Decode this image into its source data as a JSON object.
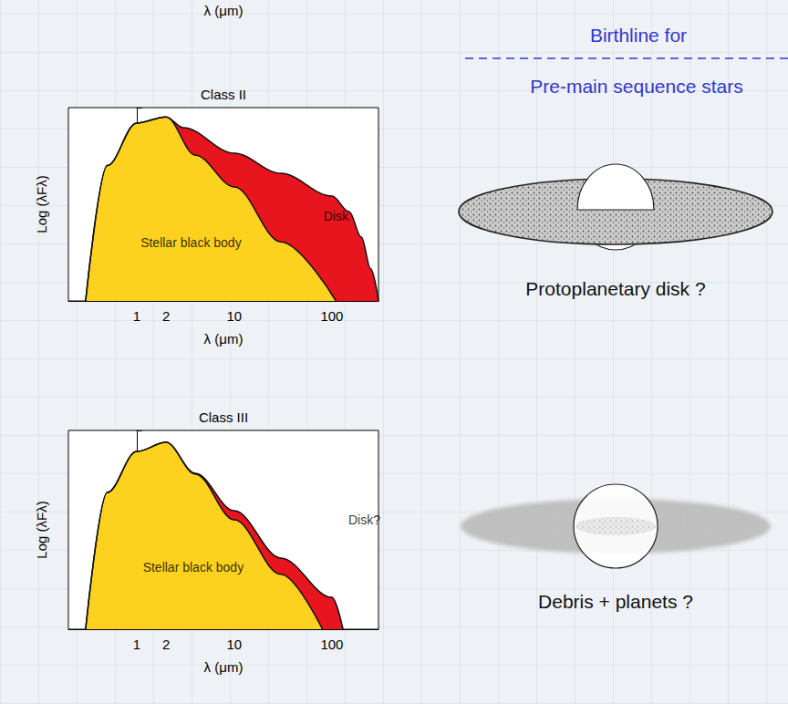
{
  "header": {
    "top_caption": "λ (μm)"
  },
  "chart_data": [
    {
      "type": "area",
      "title": "Class II",
      "x_label": "λ (μm)",
      "y_label": "Log (λFλ)",
      "log": "x",
      "xlim": [
        0.2,
        300
      ],
      "xticks": [
        1,
        2,
        10,
        100
      ],
      "ylim": [
        0,
        5
      ],
      "yticks": [
        0,
        1,
        2,
        3,
        4,
        5
      ],
      "tick_labels": "x",
      "grid": false,
      "series": [
        {
          "color": "#e8141e",
          "x": [
            0.3,
            0.5,
            1,
            2,
            3,
            10,
            30,
            100,
            150,
            200,
            250,
            300
          ],
          "values": [
            0,
            3.5,
            4.6,
            4.76,
            4.48,
            3.82,
            3.3,
            2.71,
            2.31,
            1.65,
            0.83,
            0
          ]
        },
        {
          "color": "#fdd21f",
          "x": [
            0.3,
            0.5,
            1,
            2,
            4,
            10,
            30,
            110
          ],
          "values": [
            0,
            3.5,
            4.6,
            4.76,
            3.77,
            2.95,
            1.53,
            0
          ]
        }
      ],
      "annotations": [
        {
          "text": "Stellar black body",
          "x": 3.6,
          "y": 1.5
        },
        {
          "text": "Disk",
          "x": 110,
          "y": 2.2
        }
      ]
    },
    {
      "type": "area",
      "title": "Class III",
      "x_label": "λ (μm)",
      "y_label": "Log (λFλ)",
      "log": "x",
      "xlim": [
        0.2,
        300
      ],
      "xticks": [
        1,
        2,
        10,
        100
      ],
      "ylim": [
        0,
        5
      ],
      "yticks": [
        0,
        1,
        2,
        3,
        4,
        5
      ],
      "tick_labels": "x",
      "grid": false,
      "series": [
        {
          "color": "#e8141e",
          "x": [
            0.3,
            0.5,
            1,
            2,
            4,
            10,
            30,
            100,
            130
          ],
          "values": [
            0,
            3.44,
            4.47,
            4.7,
            3.92,
            2.98,
            1.79,
            0.8,
            0
          ]
        },
        {
          "color": "#fdd21f",
          "x": [
            0.3,
            0.5,
            1,
            2,
            4,
            10,
            30,
            80
          ],
          "values": [
            0,
            3.44,
            4.47,
            4.7,
            3.9,
            2.75,
            1.38,
            0
          ]
        }
      ],
      "annotations": [
        {
          "text": "Stellar black body",
          "x": 3.8,
          "y": 1.56
        },
        {
          "text": "Disk?",
          "x": 215,
          "y": 2.75
        }
      ]
    }
  ],
  "birthline": {
    "line1": "Birthline for",
    "line2": "Pre-main sequence stars"
  },
  "sketches": [
    {
      "caption": "Protoplanetary disk ?"
    },
    {
      "caption": "Debris + planets ?"
    }
  ]
}
